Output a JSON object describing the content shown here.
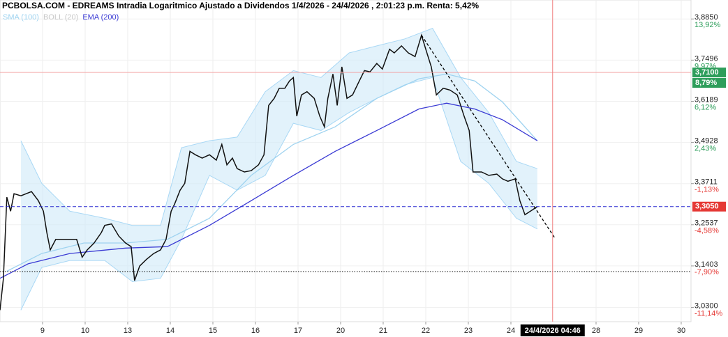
{
  "chart_data": {
    "type": "line",
    "title": "PCBOLSA.COM - EDREAMS Intradia Logaritmico Ajustado a Dividendos 1/4/2026 - 24/4/2026 , 2:01:23 p.m. Renta: 5,42%",
    "log_scale": true,
    "grid": true,
    "xlim": [
      0,
      16.23
    ],
    "ylim": [
      2.993,
      3.949
    ],
    "xticks": [
      {
        "value": 1,
        "label": "9"
      },
      {
        "value": 2,
        "label": "10"
      },
      {
        "value": 3,
        "label": "13"
      },
      {
        "value": 4,
        "label": "14"
      },
      {
        "value": 5,
        "label": "15"
      },
      {
        "value": 6,
        "label": "16"
      },
      {
        "value": 7,
        "label": "17"
      },
      {
        "value": 8,
        "label": "20"
      },
      {
        "value": 9,
        "label": "21"
      },
      {
        "value": 10,
        "label": "22"
      },
      {
        "value": 11,
        "label": "23"
      },
      {
        "value": 12,
        "label": "24"
      },
      {
        "value": 14,
        "label": "28"
      },
      {
        "value": 15,
        "label": "29"
      },
      {
        "value": 16,
        "label": "30"
      }
    ],
    "yticks": [
      {
        "value": 3.885,
        "label": "3,8850"
      },
      {
        "value": 3.7496,
        "label": "3,7496"
      },
      {
        "value": 3.6189,
        "label": "3,6189"
      },
      {
        "value": 3.4928,
        "label": "3,4928"
      },
      {
        "value": 3.3711,
        "label": "3,3711"
      },
      {
        "value": 3.2537,
        "label": "3,2537"
      },
      {
        "value": 3.1403,
        "label": "3,1403"
      },
      {
        "value": 3.03,
        "label": "3,0300"
      }
    ],
    "ytick_percent": [
      "13,92%",
      "9,97%",
      "6,12%",
      "2,43%",
      "-1,13%",
      "-4,58%",
      "-7,90%",
      "-11,14%"
    ],
    "series": [
      {
        "kind": "price",
        "color": "#111111",
        "x": [
          0,
          0.08,
          0.16,
          0.25,
          0.33,
          0.49,
          0.74,
          0.9,
          1.02,
          1.1,
          1.18,
          1.31,
          1.56,
          1.8,
          1.93,
          2.05,
          2.21,
          2.38,
          2.46,
          2.62,
          2.79,
          2.95,
          3.08,
          3.16,
          3.28,
          3.44,
          3.61,
          3.77,
          3.9,
          4.02,
          4.1,
          4.23,
          4.34,
          4.46,
          4.59,
          4.75,
          4.92,
          5.08,
          5.21,
          5.33,
          5.46,
          5.57,
          5.74,
          5.9,
          6.07,
          6.2,
          6.31,
          6.44,
          6.56,
          6.69,
          6.8,
          6.89,
          6.97,
          7.08,
          7.21,
          7.38,
          7.51,
          7.62,
          7.7,
          7.82,
          7.92,
          8.03,
          8.15,
          8.28,
          8.44,
          8.56,
          8.69,
          8.85,
          8.98,
          9.15,
          9.26,
          9.43,
          9.59,
          9.75,
          9.9,
          10,
          10.13,
          10.25,
          10.41,
          10.57,
          10.74,
          10.9,
          11.02,
          11.11,
          11.31,
          11.48,
          11.67,
          11.8,
          11.93,
          12.1,
          12.21,
          12.33,
          12.46,
          12.62
        ],
        "values": [
          3.023,
          3.107,
          3.332,
          3.292,
          3.342,
          3.336,
          3.348,
          3.322,
          3.292,
          3.232,
          3.184,
          3.213,
          3.213,
          3.213,
          3.164,
          3.184,
          3.203,
          3.232,
          3.252,
          3.256,
          3.222,
          3.203,
          3.193,
          3.101,
          3.14,
          3.158,
          3.174,
          3.184,
          3.213,
          3.292,
          3.312,
          3.352,
          3.372,
          3.466,
          3.456,
          3.446,
          3.456,
          3.44,
          3.487,
          3.426,
          3.446,
          3.415,
          3.405,
          3.409,
          3.426,
          3.456,
          3.606,
          3.628,
          3.66,
          3.66,
          3.683,
          3.694,
          3.573,
          3.639,
          3.649,
          3.628,
          3.573,
          3.54,
          3.628,
          3.705,
          3.606,
          3.728,
          3.628,
          3.639,
          3.683,
          3.716,
          3.712,
          3.739,
          3.721,
          3.785,
          3.773,
          3.796,
          3.773,
          3.761,
          3.831,
          3.785,
          3.728,
          3.639,
          3.66,
          3.654,
          3.639,
          3.573,
          3.529,
          3.405,
          3.405,
          3.395,
          3.399,
          3.385,
          3.378,
          3.385,
          3.322,
          3.282,
          3.292,
          3.305
        ]
      },
      {
        "kind": "line",
        "name": "SMA (100)",
        "color": "#9fd3f0",
        "x": [
          0.16,
          0.98,
          1.97,
          2.95,
          3.93,
          4.92,
          5.9,
          6.89,
          7.87,
          8.85,
          9.84,
          10.49,
          11.15,
          11.8,
          12.62
        ],
        "values": [
          3.126,
          3.174,
          3.203,
          3.203,
          3.213,
          3.272,
          3.395,
          3.487,
          3.54,
          3.628,
          3.69,
          3.705,
          3.683,
          3.617,
          3.498
        ]
      },
      {
        "kind": "band",
        "name": "BOLL (20)",
        "color": "#cfe9f9",
        "x": [
          0.49,
          0.98,
          1.64,
          2.46,
          3.11,
          3.77,
          4.26,
          4.92,
          5.57,
          6.23,
          6.89,
          7.54,
          8.2,
          8.85,
          9.51,
          10.16,
          10.82,
          11.48,
          12.13,
          12.62
        ],
        "upper": [
          3.498,
          3.372,
          3.292,
          3.272,
          3.252,
          3.252,
          3.477,
          3.498,
          3.509,
          3.649,
          3.716,
          3.694,
          3.773,
          3.796,
          3.819,
          3.854,
          3.694,
          3.584,
          3.436,
          3.415
        ],
        "lower": [
          3.023,
          3.136,
          3.155,
          3.155,
          3.098,
          3.107,
          3.213,
          3.395,
          3.352,
          3.395,
          3.551,
          3.529,
          3.584,
          3.628,
          3.671,
          3.694,
          3.436,
          3.372,
          3.272,
          3.242
        ]
      },
      {
        "kind": "line",
        "name": "EMA (200)",
        "color": "#3b3bd4",
        "x": [
          0,
          0.66,
          1.64,
          2.95,
          3.93,
          4.92,
          5.9,
          6.89,
          7.87,
          8.85,
          9.84,
          10.49,
          11.15,
          11.8,
          12.62
        ],
        "values": [
          3.107,
          3.146,
          3.174,
          3.189,
          3.193,
          3.252,
          3.322,
          3.395,
          3.466,
          3.529,
          3.595,
          3.613,
          3.595,
          3.562,
          3.498
        ]
      }
    ],
    "legend_colors": [
      "#9fd3f0",
      "#c8c8c8",
      "#3b3bd4"
    ],
    "levels": [
      {
        "value": 3.71,
        "label": "3,7100",
        "percent": "8,79%",
        "color": "#2e9e5b",
        "line_color": "#f3a0a0",
        "style": "solid"
      },
      {
        "value": 3.305,
        "label": "3,3050",
        "color": "#e53935",
        "line_color": "#2a2ad0",
        "style": "dashed"
      },
      {
        "value": 3.125,
        "line_color": "#000000",
        "style": "dotted"
      }
    ],
    "trendline": {
      "x": [
        9.9,
        13.03
      ],
      "values": [
        3.831,
        3.217
      ],
      "color": "#000000"
    },
    "crosshair": {
      "x": 12.98,
      "label": "24/4/2026 04:46",
      "color": "#f08080"
    }
  }
}
